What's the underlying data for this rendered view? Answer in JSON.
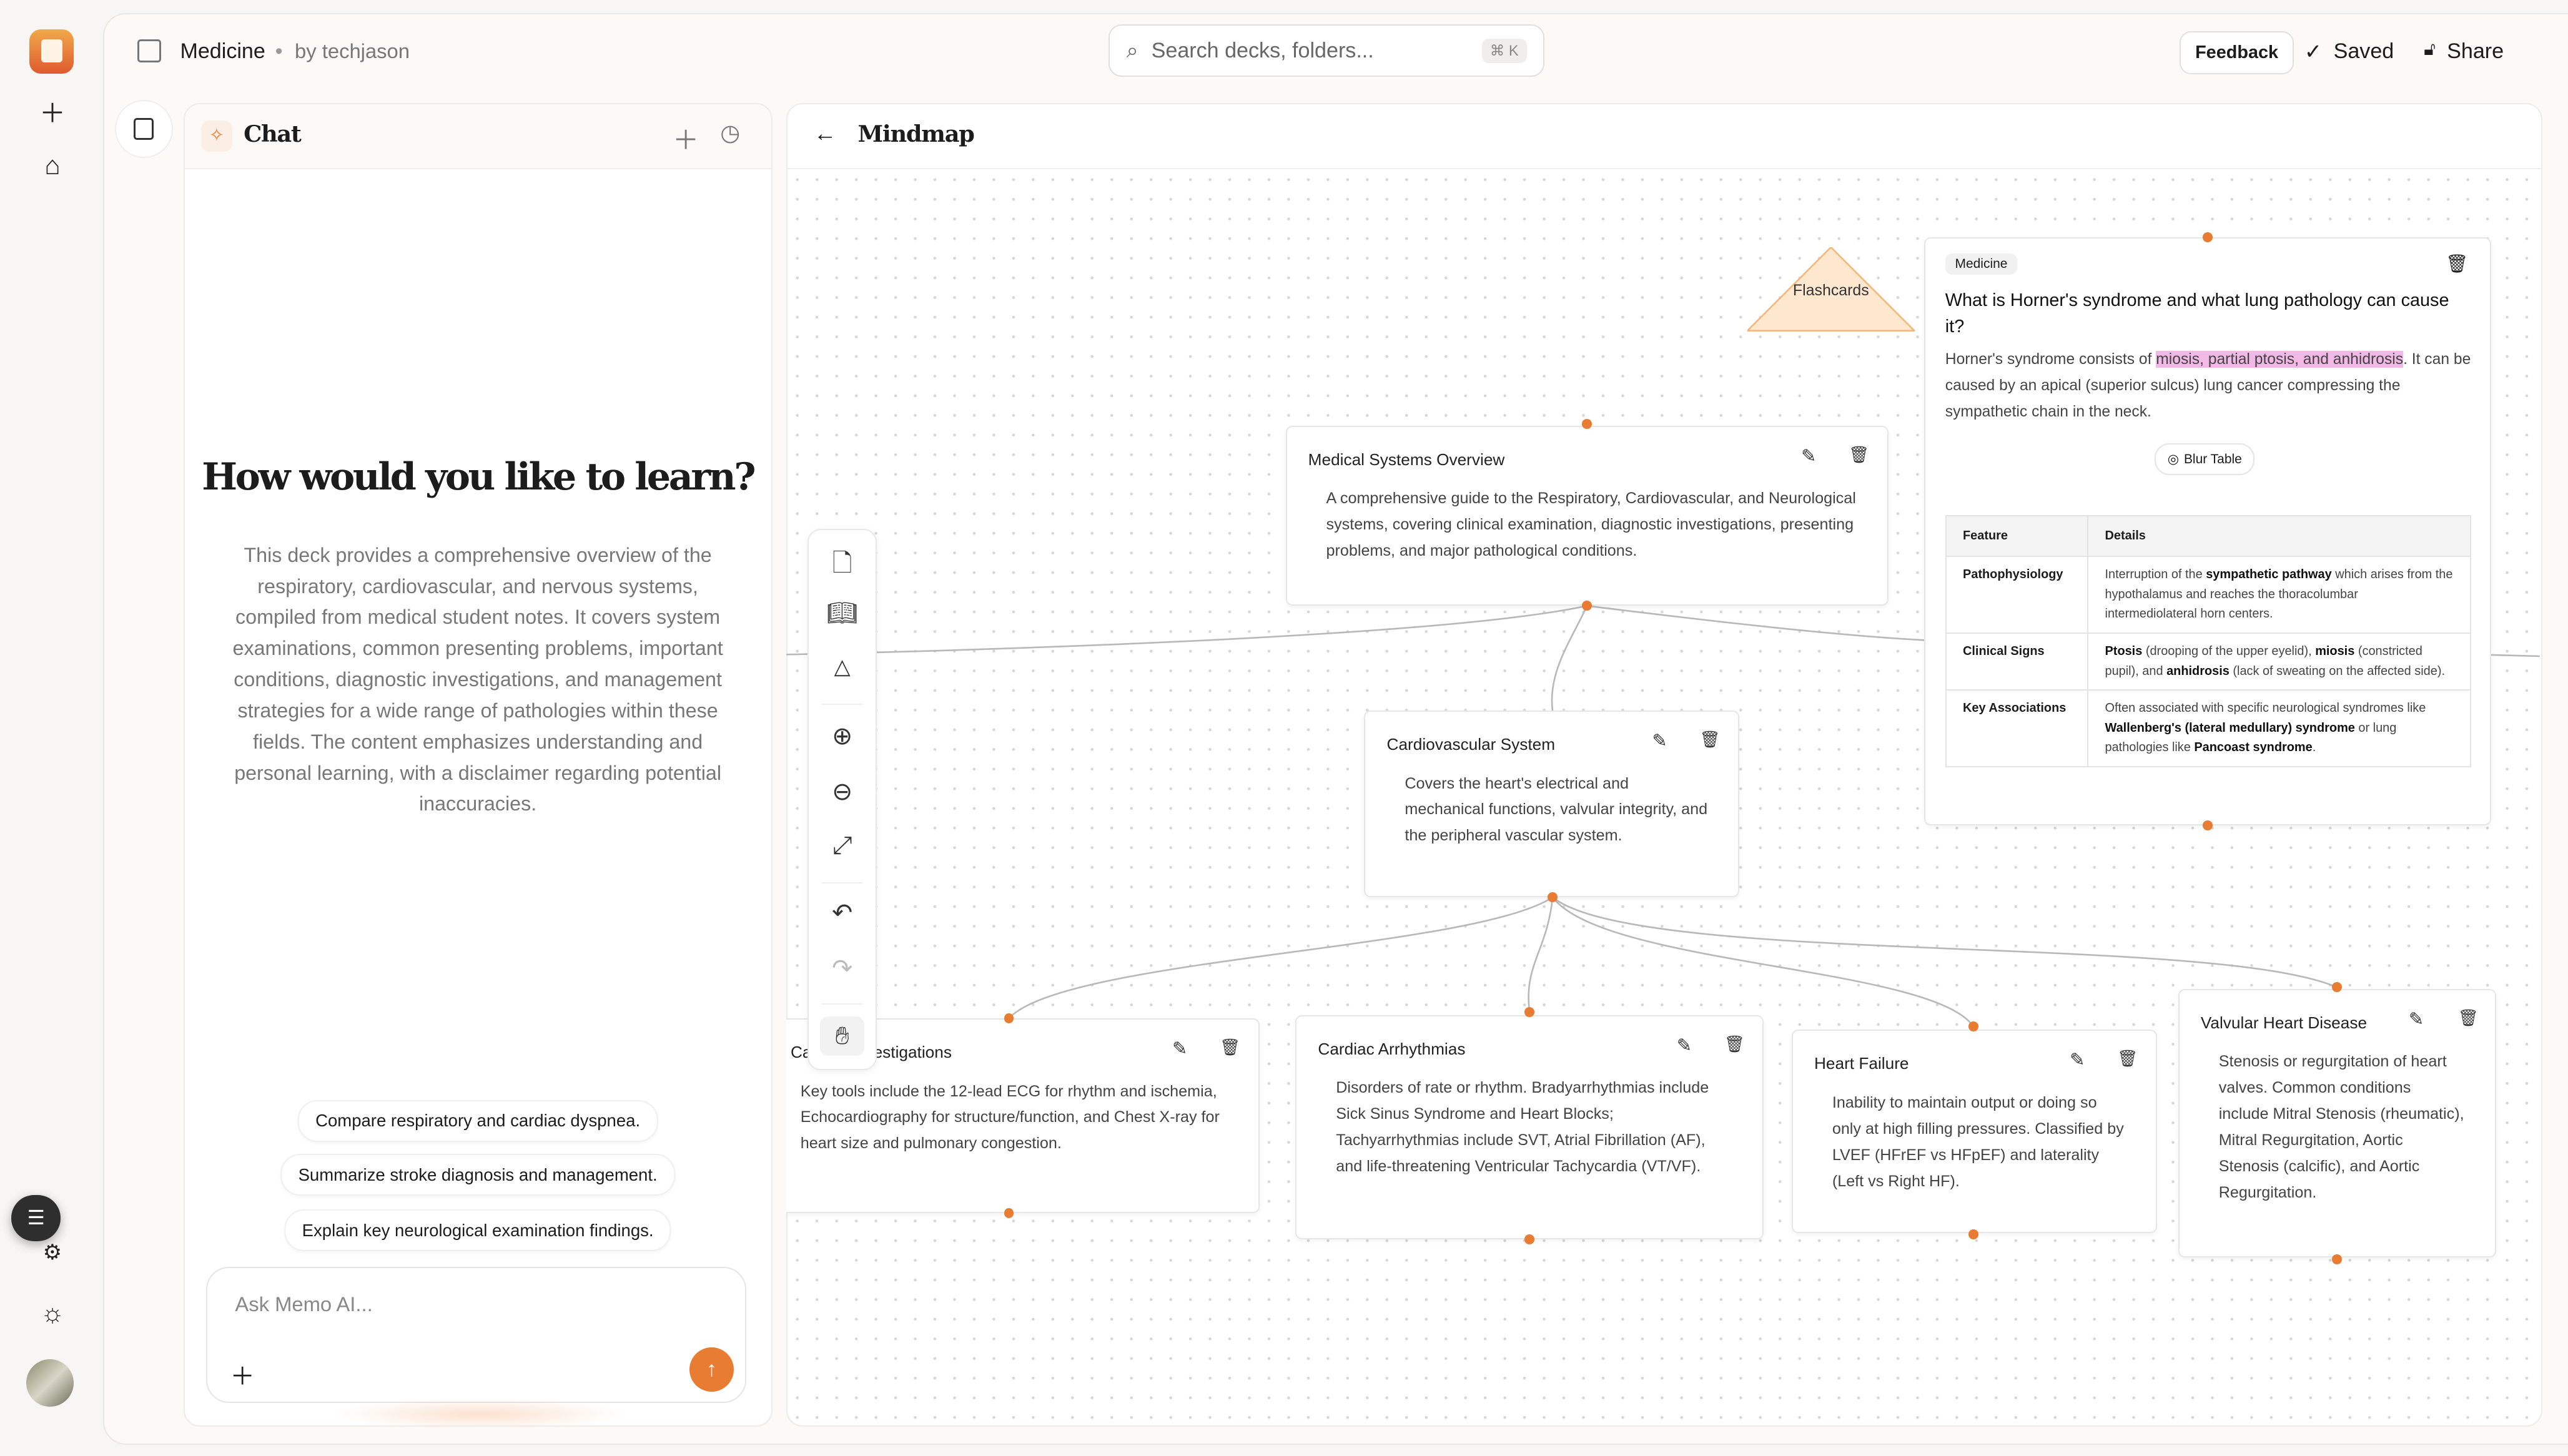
{
  "rail": {
    "logo": "app-logo",
    "items": [
      "new-icon",
      "home-icon",
      "outline-icon",
      "settings-icon",
      "theme-icon",
      "avatar"
    ]
  },
  "header": {
    "deck": "Medicine",
    "separator": "•",
    "author": "by techjason",
    "search_placeholder": "Search decks, folders...",
    "search_shortcut": "⌘ K",
    "feedback": "Feedback",
    "saved": "Saved",
    "share": "Share"
  },
  "chat": {
    "title": "Chat",
    "heading": "How would you like to learn?",
    "description": "This deck provides a comprehensive overview of the respiratory, cardiovascular, and nervous systems, compiled from medical student notes. It covers system examinations, common presenting problems, important conditions, diagnostic investigations, and management strategies for a wide range of pathologies within these fields. The content emphasizes understanding and personal learning, with a disclaimer regarding potential inaccuracies.",
    "suggestions": [
      "Compare respiratory and cardiac dyspnea.",
      "Summarize stroke diagnosis and management.",
      "Explain key neurological examination findings."
    ],
    "input_placeholder": "Ask Memo AI..."
  },
  "mindmap": {
    "title": "Mindmap",
    "accent": "#e87c33",
    "shape_label": "Flashcards",
    "nodes": [
      {
        "title": "Medical Systems Overview",
        "body": "A comprehensive guide to the Respiratory, Cardiovascular, and Neurological systems, covering clinical examination, diagnostic investigations, presenting problems, and major pathological conditions."
      },
      {
        "title": "Cardiovascular System",
        "body": "Covers the heart's electrical and mechanical functions, valvular integrity, and the peripheral vascular system."
      },
      {
        "title": "Cardiac Investigations",
        "body": "Key tools include the 12-lead ECG for rhythm and ischemia, Echocardiography for structure/function, and Chest X-ray for heart size and pulmonary congestion."
      },
      {
        "title": "Cardiac Arrhythmias",
        "body": "Disorders of rate or rhythm. Bradyarrhythmias include Sick Sinus Syndrome and Heart Blocks; Tachyarrhythmias include SVT, Atrial Fibrillation (AF), and life-threatening Ventricular Tachycardia (VT/VF)."
      },
      {
        "title": "Heart Failure",
        "body": "Inability to maintain output or doing so only at high filling pressures. Classified by LVEF (HFrEF vs HFpEF) and laterality (Left vs Right HF)."
      },
      {
        "title": "Valvular Heart Disease",
        "body": "Stenosis or regurgitation of heart valves. Common conditions include Mitral Stenosis (rheumatic), Mitral Regurgitation, Aortic Stenosis (calcific), and Aortic Regurgitation."
      }
    ],
    "flashcard": {
      "tag": "Medicine",
      "question": "What is Horner's syndrome and what lung pathology can cause it?",
      "answer": [
        {
          "t": "Horner's syndrome consists of "
        },
        {
          "t": "miosis, partial ptosis, and anhidrosis",
          "hl": true
        },
        {
          "t": ". It can be caused by an apical (superior sulcus) lung cancer compressing the sympathetic chain in the neck."
        }
      ],
      "blur_label": "Blur Table",
      "table_headers": [
        "Feature",
        "Details"
      ],
      "rows": [
        {
          "feature": "Pathophysiology",
          "details": [
            {
              "t": "Interruption of the "
            },
            {
              "t": "sympathetic pathway",
              "b": true
            },
            {
              "t": " which arises from the hypothalamus and reaches the thoracolumbar intermediolateral horn centers."
            }
          ]
        },
        {
          "feature": "Clinical Signs",
          "details": [
            {
              "t": "Ptosis",
              "b": true
            },
            {
              "t": " (drooping of the upper eyelid), "
            },
            {
              "t": "miosis",
              "b": true
            },
            {
              "t": " (constricted pupil), and "
            },
            {
              "t": "anhidrosis",
              "b": true
            },
            {
              "t": " (lack of sweating on the affected side)."
            }
          ]
        },
        {
          "feature": "Key Associations",
          "details": [
            {
              "t": "Often associated with specific neurological syndromes like "
            },
            {
              "t": "Wallenberg's (lateral medullary) syndrome",
              "b": true
            },
            {
              "t": " or lung pathologies like "
            },
            {
              "t": "Pancoast syndrome",
              "b": true
            },
            {
              "t": "."
            }
          ]
        }
      ]
    },
    "toolbar": [
      "page-icon",
      "book-icon",
      "shapes-icon",
      "zoom-in-icon",
      "zoom-out-icon",
      "fit-view-icon",
      "undo-icon",
      "redo-icon",
      "hand-icon"
    ]
  }
}
